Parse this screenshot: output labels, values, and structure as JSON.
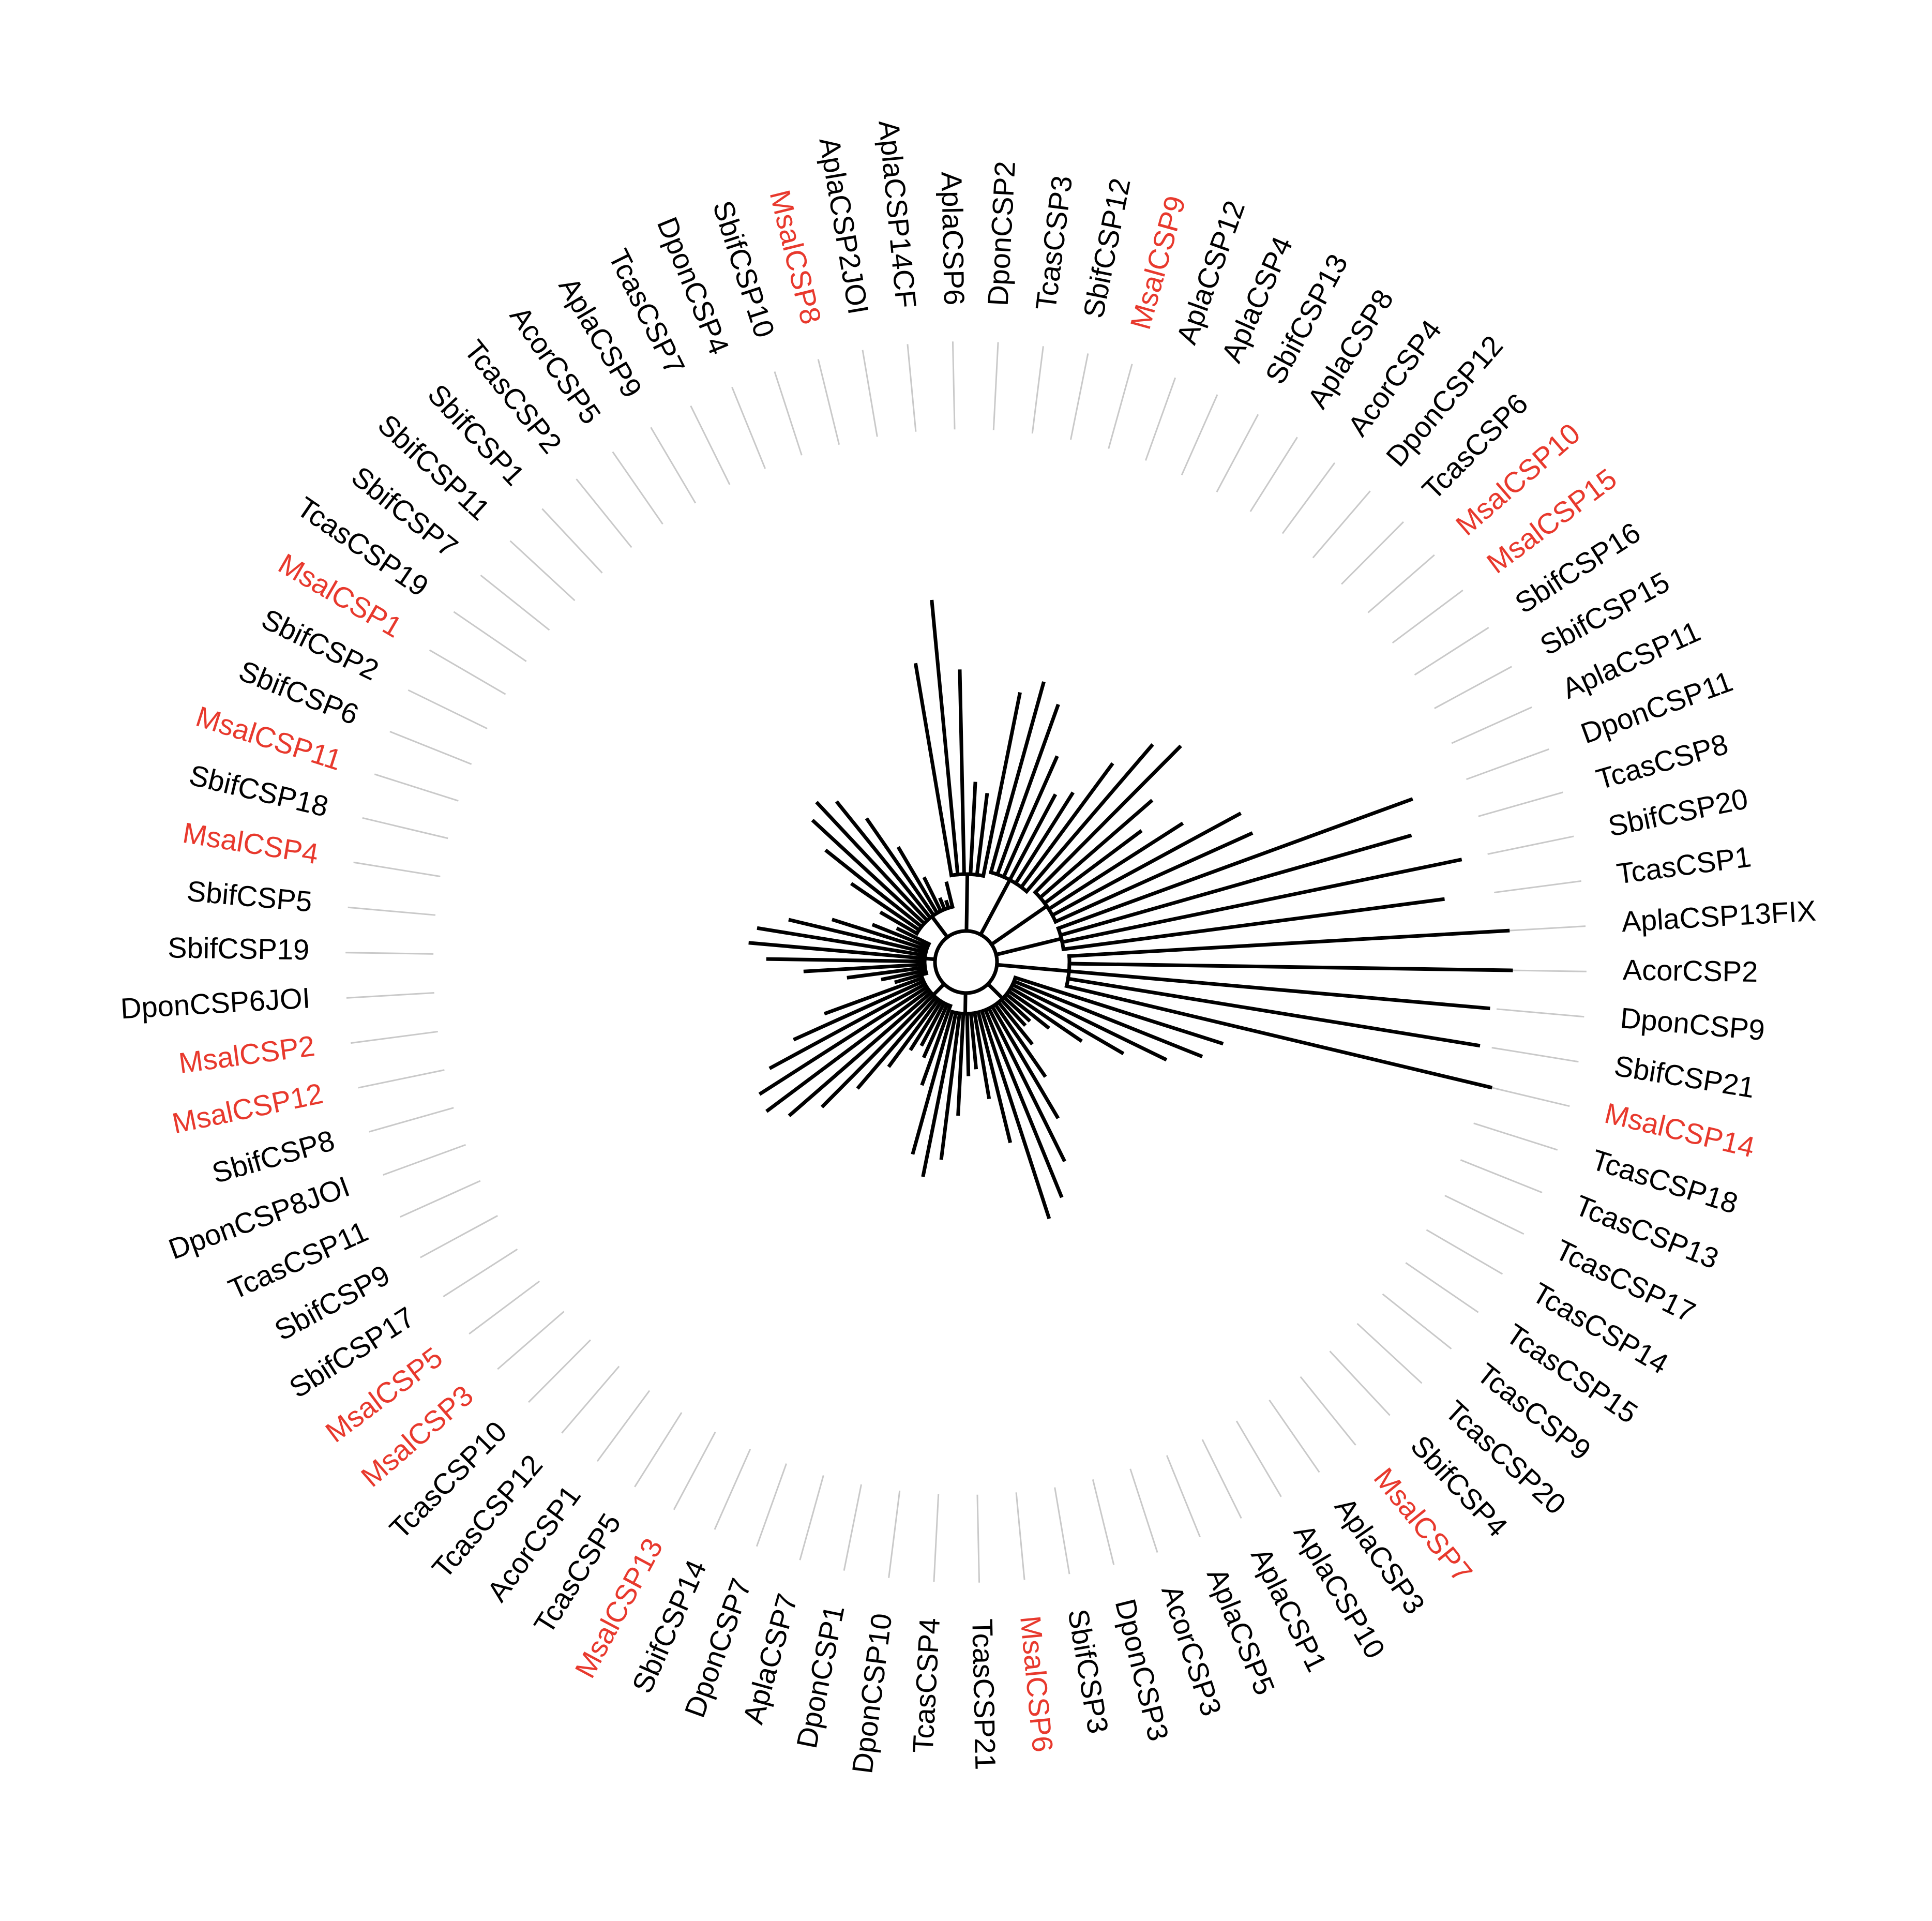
{
  "colors": {
    "highlight": "#e8392d",
    "default": "#000000",
    "guide": "#c9c9c9",
    "branch": "#000000"
  },
  "highlight_prefix": "Msal",
  "leaves": [
    "TcasCSP1",
    "TcasCSP20_b",
    "TcasCSP8",
    "DponCSP11",
    "AplaCSP11",
    "SbifCSP15",
    "SbifCSP16",
    "MsalCSP15",
    "MsalCSP10",
    "TcasCSP6",
    "DponCSP12",
    "AcorCSP4",
    "AplaCSP8",
    "SbifCSP13",
    "AplaCSP4",
    "AplaCSP12",
    "MsalCSP9",
    "SbifCSP12",
    "TcasCSP3",
    "DponCSP2",
    "AplaCSP6",
    "AplaCSP14CF",
    "AplaCSP2JOI",
    "MsalCSP8",
    "SbifCSP10",
    "DponCSP4",
    "TcasCSP7",
    "AplaCSP9",
    "AcorCSP5",
    "TcasCSP2",
    "SbifCSP1",
    "SbifCSP11",
    "SbifCSP7",
    "TcasCSP19",
    "MsalCSP1",
    "SbifCSP2",
    "SbifCSP6",
    "MsalCSP11",
    "SbifCSP18",
    "MsalCSP4",
    "SbifCSP5",
    "SbifCSP19",
    "DponCSP6JOI",
    "MsalCSP2",
    "MsalCSP12",
    "SbifCSP8",
    "DponCSP8JOI",
    "TcasCSP11",
    "SbifCSP9",
    "SbifCSP17",
    "MsalCSP5",
    "MsalCSP3",
    "TcasCSP10",
    "TcasCSP12",
    "AcorCSP1",
    "TcasCSP5",
    "MsalCSP13",
    "SbifCSP14",
    "DponCSP7",
    "AplaCSP7",
    "DponCSP1",
    "DponCSP10",
    "TcasCSP4",
    "TcasCSP21",
    "MsalCSP6",
    "SbifCSP3",
    "DponCSP3",
    "AcorCSP3",
    "AplaCSP5",
    "AplaCSP1",
    "AplaCSP10",
    "AplaCSP3",
    "MsalCSP7",
    "SbifCSP4",
    "TcasCSP20",
    "TcasCSP9",
    "TcasCSP15",
    "TcasCSP14",
    "TcasCSP17",
    "TcasCSP13",
    "TcasCSP18",
    "MsalCSP14",
    "SbifCSP21",
    "DponCSP9",
    "AcorCSP2",
    "AplaCSP13FIX"
  ],
  "leaf_text": {
    "TcasCSP20_b": "SbifCSP20"
  }
}
